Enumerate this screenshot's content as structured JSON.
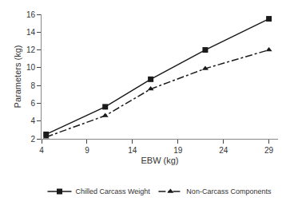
{
  "chart_data": {
    "type": "line",
    "x": [
      4.5,
      11,
      16,
      22,
      29
    ],
    "series": [
      {
        "name": "Chilled Carcass Weight",
        "color": "#1a1a1a",
        "values": [
          2.5,
          5.6,
          8.7,
          12.0,
          15.5
        ],
        "marker": "square",
        "line_style": "solid"
      },
      {
        "name": "Non-Carcass Components",
        "color": "#1a1a1a",
        "values": [
          2.2,
          4.6,
          7.6,
          9.9,
          12.0
        ],
        "marker": "triangle",
        "line_style": "dashdot"
      }
    ],
    "xlabel": "EBW (kg)",
    "ylabel": "Parameters (kg)",
    "xlim": [
      4,
      30
    ],
    "xticks": [
      4,
      9,
      14,
      19,
      24,
      29
    ],
    "ylim": [
      2,
      16
    ],
    "yticks": [
      2,
      4,
      6,
      8,
      10,
      12,
      14,
      16
    ],
    "grid": false,
    "legend": "bottom"
  }
}
